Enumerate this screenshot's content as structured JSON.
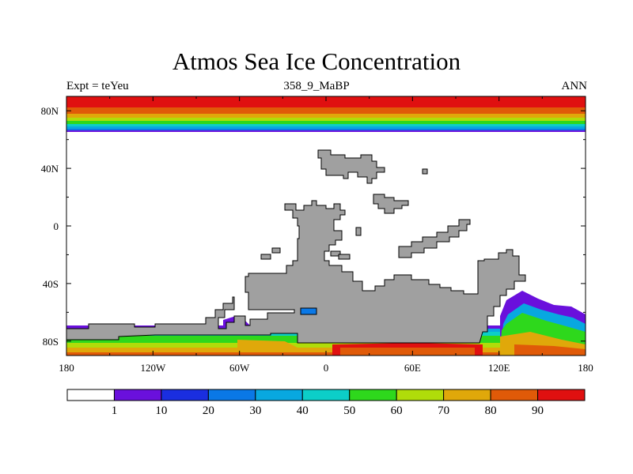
{
  "title": "Atmos Sea Ice Concentration",
  "left_subtitle": "Expt = teYeu",
  "center_subtitle": "358_9_MaBP",
  "right_subtitle": "ANN",
  "map": {
    "x_ticks": [
      {
        "lon": -180,
        "label": "180"
      },
      {
        "lon": -120,
        "label": "120W"
      },
      {
        "lon": -60,
        "label": "60W"
      },
      {
        "lon": 0,
        "label": "0"
      },
      {
        "lon": 60,
        "label": "60E"
      },
      {
        "lon": 120,
        "label": "120E"
      },
      {
        "lon": 180,
        "label": "180"
      }
    ],
    "y_ticks": [
      {
        "lat": 80,
        "label": "80N"
      },
      {
        "lat": 40,
        "label": "40N"
      },
      {
        "lat": 0,
        "label": "0"
      },
      {
        "lat": -40,
        "label": "40S"
      },
      {
        "lat": -80,
        "label": "80S"
      }
    ],
    "lon_range": [
      -180,
      180
    ],
    "lat_range": [
      -90,
      90
    ]
  },
  "colorbar": {
    "levels": [
      "1",
      "10",
      "20",
      "30",
      "40",
      "50",
      "60",
      "70",
      "80",
      "90"
    ],
    "colors": [
      "#ffffff",
      "#6a10dc",
      "#1a2ee0",
      "#0a78e6",
      "#08a8e0",
      "#0ccec8",
      "#2ed81c",
      "#b0dc0a",
      "#e0a80a",
      "#e05a08",
      "#e01010"
    ]
  },
  "colors": {
    "land": "#a0a0a0",
    "ice_90": "#e01010",
    "ice_80": "#e05a08",
    "ice_70": "#e0a80a",
    "ice_60": "#b0dc0a",
    "ice_50": "#2ed81c",
    "ice_40": "#0ccec8",
    "ice_30": "#08a8e0",
    "ice_20": "#0a78e6",
    "ice_1": "#6a10dc"
  }
}
